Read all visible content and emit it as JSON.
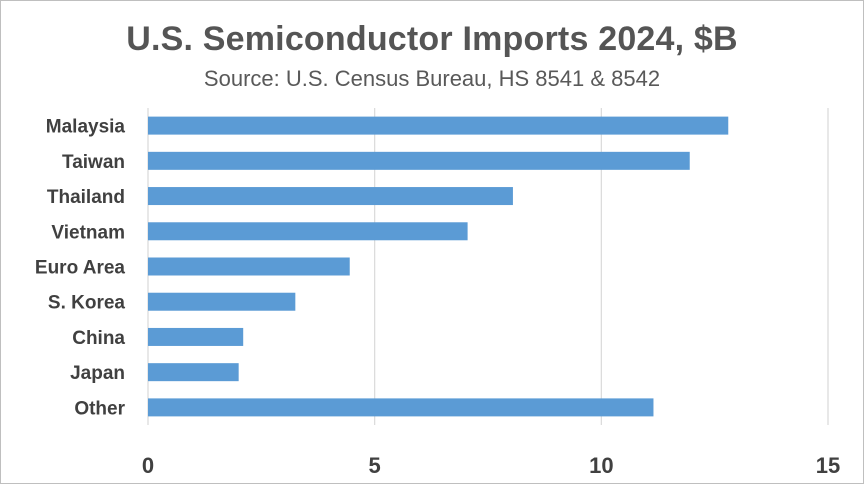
{
  "chart_data": {
    "type": "bar",
    "orientation": "horizontal",
    "title": "U.S. Semiconductor Imports 2024, $B",
    "subtitle": "Source: U.S. Census Bureau, HS 8541 & 8542",
    "categories": [
      "Malaysia",
      "Taiwan",
      "Thailand",
      "Vietnam",
      "Euro Area",
      "S. Korea",
      "China",
      "Japan",
      "Other"
    ],
    "values": [
      12.8,
      11.95,
      8.05,
      7.05,
      4.45,
      3.25,
      2.1,
      2.0,
      11.15
    ],
    "xlim": [
      0,
      15
    ],
    "xticks": [
      0,
      5,
      10,
      15
    ],
    "grid": "vertical",
    "legend": "none",
    "bar_color": "#5b9bd5"
  }
}
